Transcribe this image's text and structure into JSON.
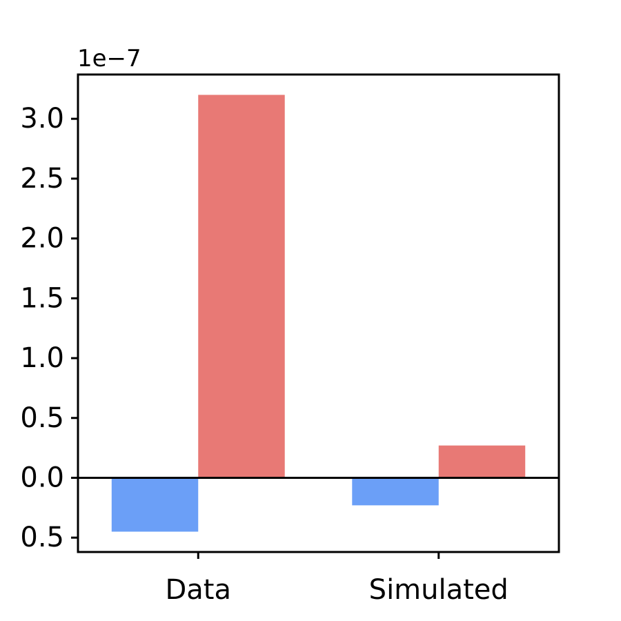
{
  "chart_data": {
    "type": "bar",
    "title": "",
    "xlabel": "",
    "ylabel": "",
    "offset_text": "1e−7",
    "categories": [
      "Data",
      "Simulated"
    ],
    "series": [
      {
        "values": [
          -0.45,
          -0.23
        ],
        "color": "#6b9ff7"
      },
      {
        "values": [
          3.2,
          0.27
        ],
        "color": "#e87975"
      }
    ],
    "ylim": [
      -0.62,
      3.37
    ],
    "yticks": [
      -0.5,
      0.0,
      0.5,
      1.0,
      1.5,
      2.0,
      2.5,
      3.0
    ],
    "ytick_labels": [
      "0.5",
      "0.0",
      "0.5",
      "1.0",
      "1.5",
      "2.0",
      "2.5",
      "3.0"
    ],
    "zero_line": true,
    "grid": false
  }
}
